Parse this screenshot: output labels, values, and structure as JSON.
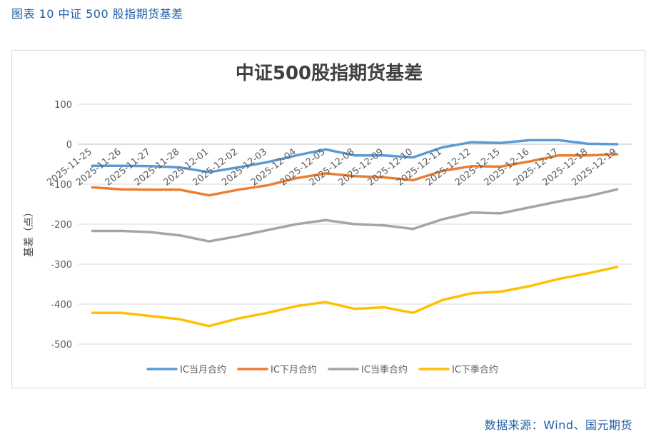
{
  "figure_caption": "图表 10  中证 500 股指期货基差",
  "source_note": "数据来源：Wind、国元期货",
  "colors": {
    "caption": "#1f5fa6",
    "ic_current_month": "#5b9bd5",
    "ic_next_month": "#ed7d31",
    "ic_current_quarter": "#a5a5a5",
    "ic_next_quarter": "#ffc000"
  },
  "chart_data": {
    "type": "line",
    "title": "中证500股指期货基差",
    "xlabel": "",
    "ylabel": "基差（点）",
    "ylim": [
      -500,
      100
    ],
    "yticks": [
      100,
      0,
      -100,
      -200,
      -300,
      -400,
      -500
    ],
    "grid": true,
    "legend_position": "bottom",
    "categories": [
      "2025-11-25",
      "2025-11-26",
      "2025-11-27",
      "2025-11-28",
      "2025-12-01",
      "2025-12-02",
      "2025-12-03",
      "2025-12-04",
      "2025-12-05",
      "2025-12-08",
      "2025-12-09",
      "2025-12-10",
      "2025-12-11",
      "2025-12-12",
      "2025-12-15",
      "2025-12-16",
      "2025-12-17",
      "2025-12-18",
      "2025-12-19"
    ],
    "series": [
      {
        "name": "IC当月合约",
        "color": "#5b9bd5",
        "values": [
          -54,
          -54,
          -55,
          -58,
          -70,
          -58,
          -45,
          -28,
          -13,
          -28,
          -28,
          -33,
          -8,
          5,
          3,
          10,
          10,
          1,
          0
        ]
      },
      {
        "name": "IC下月合约",
        "color": "#ed7d31",
        "values": [
          -108,
          -113,
          -114,
          -114,
          -128,
          -114,
          -103,
          -85,
          -73,
          -80,
          -83,
          -90,
          -67,
          -55,
          -56,
          -43,
          -28,
          -28,
          -25
        ]
      },
      {
        "name": "IC当季合约",
        "color": "#a5a5a5",
        "values": [
          -217,
          -217,
          -220,
          -228,
          -243,
          -230,
          -215,
          -200,
          -190,
          -200,
          -203,
          -212,
          -188,
          -171,
          -173,
          -158,
          -143,
          -130,
          -113
        ]
      },
      {
        "name": "IC下季合约",
        "color": "#ffc000",
        "values": [
          -422,
          -422,
          -430,
          -438,
          -455,
          -436,
          -422,
          -405,
          -395,
          -412,
          -408,
          -422,
          -390,
          -373,
          -369,
          -355,
          -337,
          -323,
          -307
        ]
      }
    ]
  }
}
